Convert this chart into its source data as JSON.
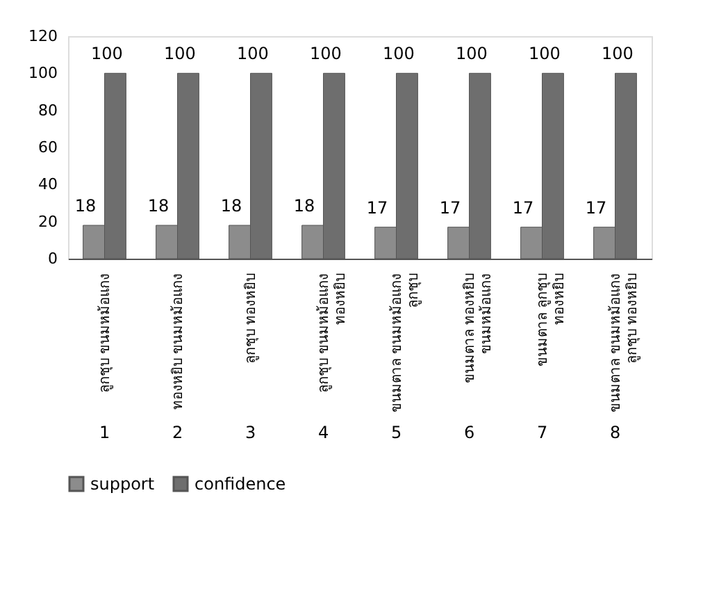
{
  "chart_data": {
    "type": "bar",
    "categories": [
      "ลูกชุบ ขนมหม้อแกง",
      "ทองหยิบ ขนมหม้อแกง",
      "ลูกชุบ ทองหยิบ",
      "ลูกชุบ ขนมหม้อแกง ทองหยิบ",
      "ขนมตาล ขนมหม้อแกง ลูกชุบ",
      "ขนมตาล ทองหยิบ ขนมหม้อแกง",
      "ขนมตาล ลูกชุบ ทองหยิบ",
      "ขนมตาล ขนมหม้อแกง ลูกชุบ ทองหยิบ"
    ],
    "series": [
      {
        "name": "support",
        "color": "#8c8c8c",
        "values": [
          18,
          18,
          18,
          18,
          17,
          17,
          17,
          17
        ]
      },
      {
        "name": "confidence",
        "color": "#6e6e6e",
        "values": [
          100,
          100,
          100,
          100,
          100,
          100,
          100,
          100
        ]
      }
    ],
    "ylim": [
      0,
      120
    ],
    "yticks": [
      0,
      20,
      40,
      60,
      80,
      100,
      120
    ],
    "data_labels": true,
    "grid": false,
    "legend": "bottom",
    "annotations": [
      "1",
      "2",
      "3",
      "4",
      "5",
      "6",
      "7",
      "8"
    ]
  }
}
